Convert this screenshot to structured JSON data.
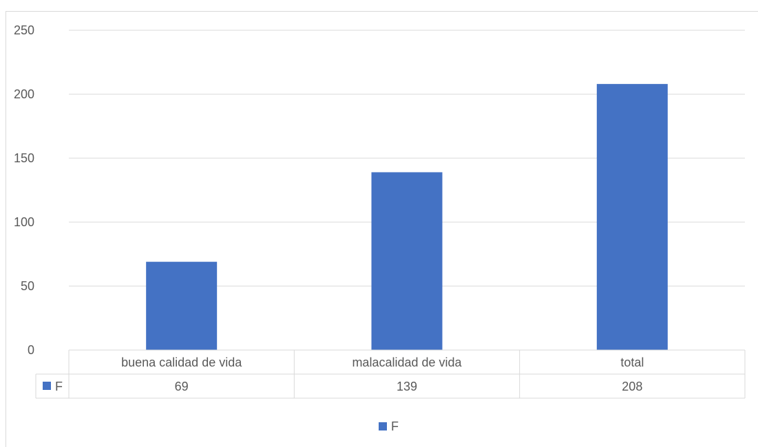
{
  "chart_data": {
    "type": "bar",
    "categories": [
      "buena calidad de vida",
      "malacalidad de vida",
      "total"
    ],
    "series": [
      {
        "name": "F",
        "values": [
          69,
          139,
          208
        ],
        "color": "#4472c4"
      }
    ],
    "ylim": [
      0,
      250
    ],
    "yticks": [
      0,
      50,
      100,
      150,
      200,
      250
    ],
    "grid": true,
    "data_table": true,
    "legend": {
      "position": "bottom",
      "label": "F"
    }
  }
}
